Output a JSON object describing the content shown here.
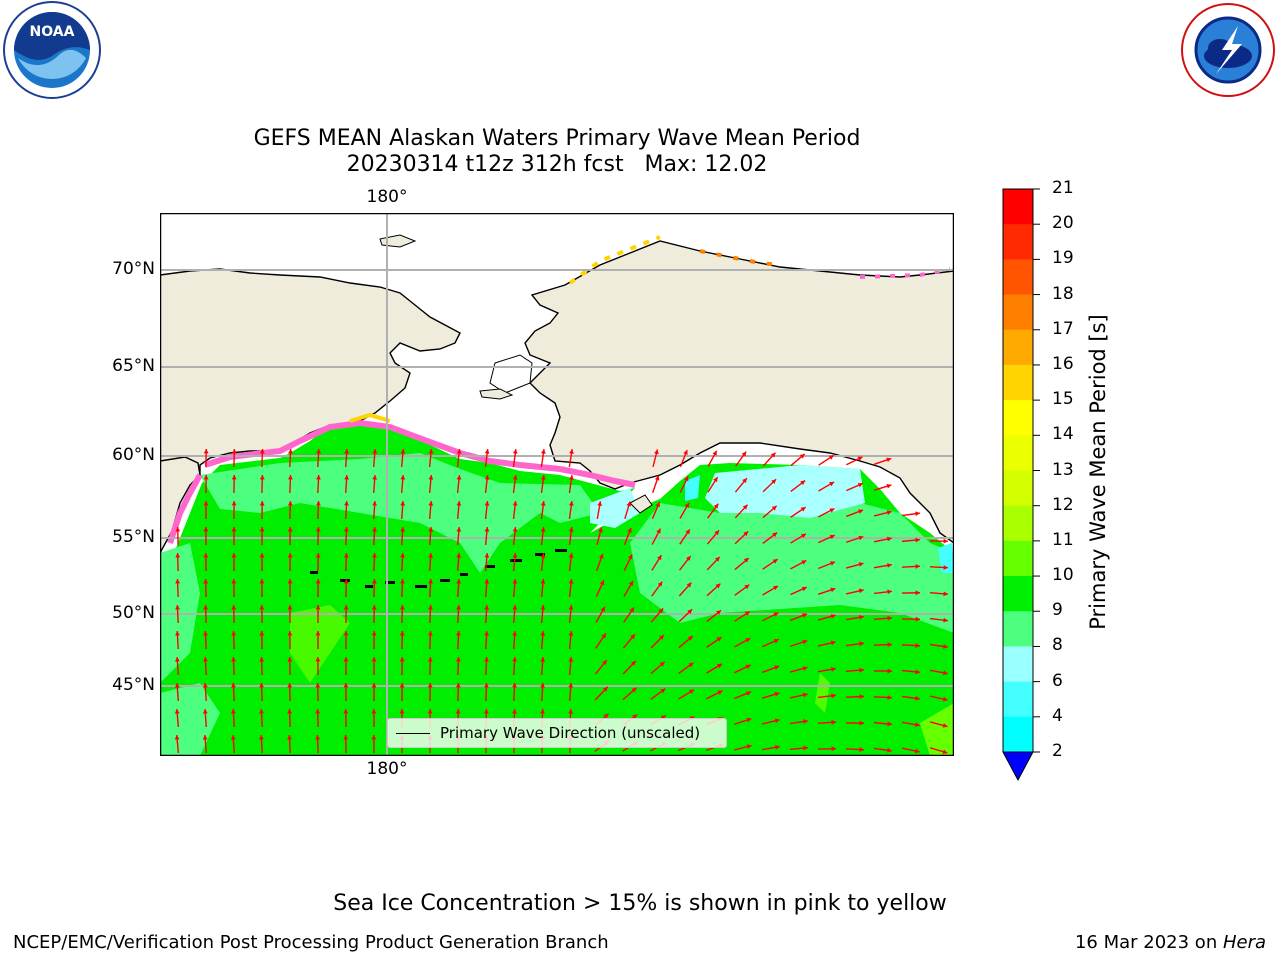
{
  "title_line1": "GEFS MEAN Alaskan Waters Primary Wave Mean Period",
  "title_line2": "20230314 t12z 312h fcst   Max: 12.02",
  "lat_labels": [
    "70°N",
    "65°N",
    "60°N",
    "55°N",
    "50°N",
    "45°N"
  ],
  "lat_values": [
    70,
    65,
    60,
    55,
    50,
    45
  ],
  "lon_top_label": "180°",
  "lon_bottom_label": "180°",
  "legend_label": "Primary Wave Direction (unscaled)",
  "colorbar": {
    "title": "Primary Wave Mean Period [s]",
    "labels": [
      "21",
      "20",
      "19",
      "18",
      "17",
      "16",
      "15",
      "14",
      "13",
      "12",
      "11",
      "10",
      "9",
      "8",
      "6",
      "4",
      "2"
    ],
    "colors": [
      "#ff0000",
      "#ff2a00",
      "#ff5500",
      "#ff7f00",
      "#ffaa00",
      "#ffd400",
      "#ffff00",
      "#eaff00",
      "#d4ff00",
      "#aaff00",
      "#66ff00",
      "#00ee00",
      "#4cff7f",
      "#99ffff",
      "#44ffff",
      "#00ffff",
      "#00ccff",
      "#0066ff"
    ],
    "extend_color": "#0000ff",
    "max_value": 12.02
  },
  "footer_note": "Sea Ice Concentration > 15% is shown in pink to yellow",
  "credit": "NCEP/EMC/Verification Post Processing Product Generation Branch",
  "date_text": "16 Mar 2023 on ",
  "date_host": "Hera",
  "colors": {
    "land": "#efecdc",
    "ocean_main": "#00ee00",
    "ocean_light": "#4cff7f",
    "ice_edge_pink": "#ff66cc",
    "cyan_zone": "#aaffff",
    "arrow": "#ff0000",
    "grid": "#b0b0b0"
  },
  "logos": [
    "noaa-logo",
    "nws-logo"
  ]
}
